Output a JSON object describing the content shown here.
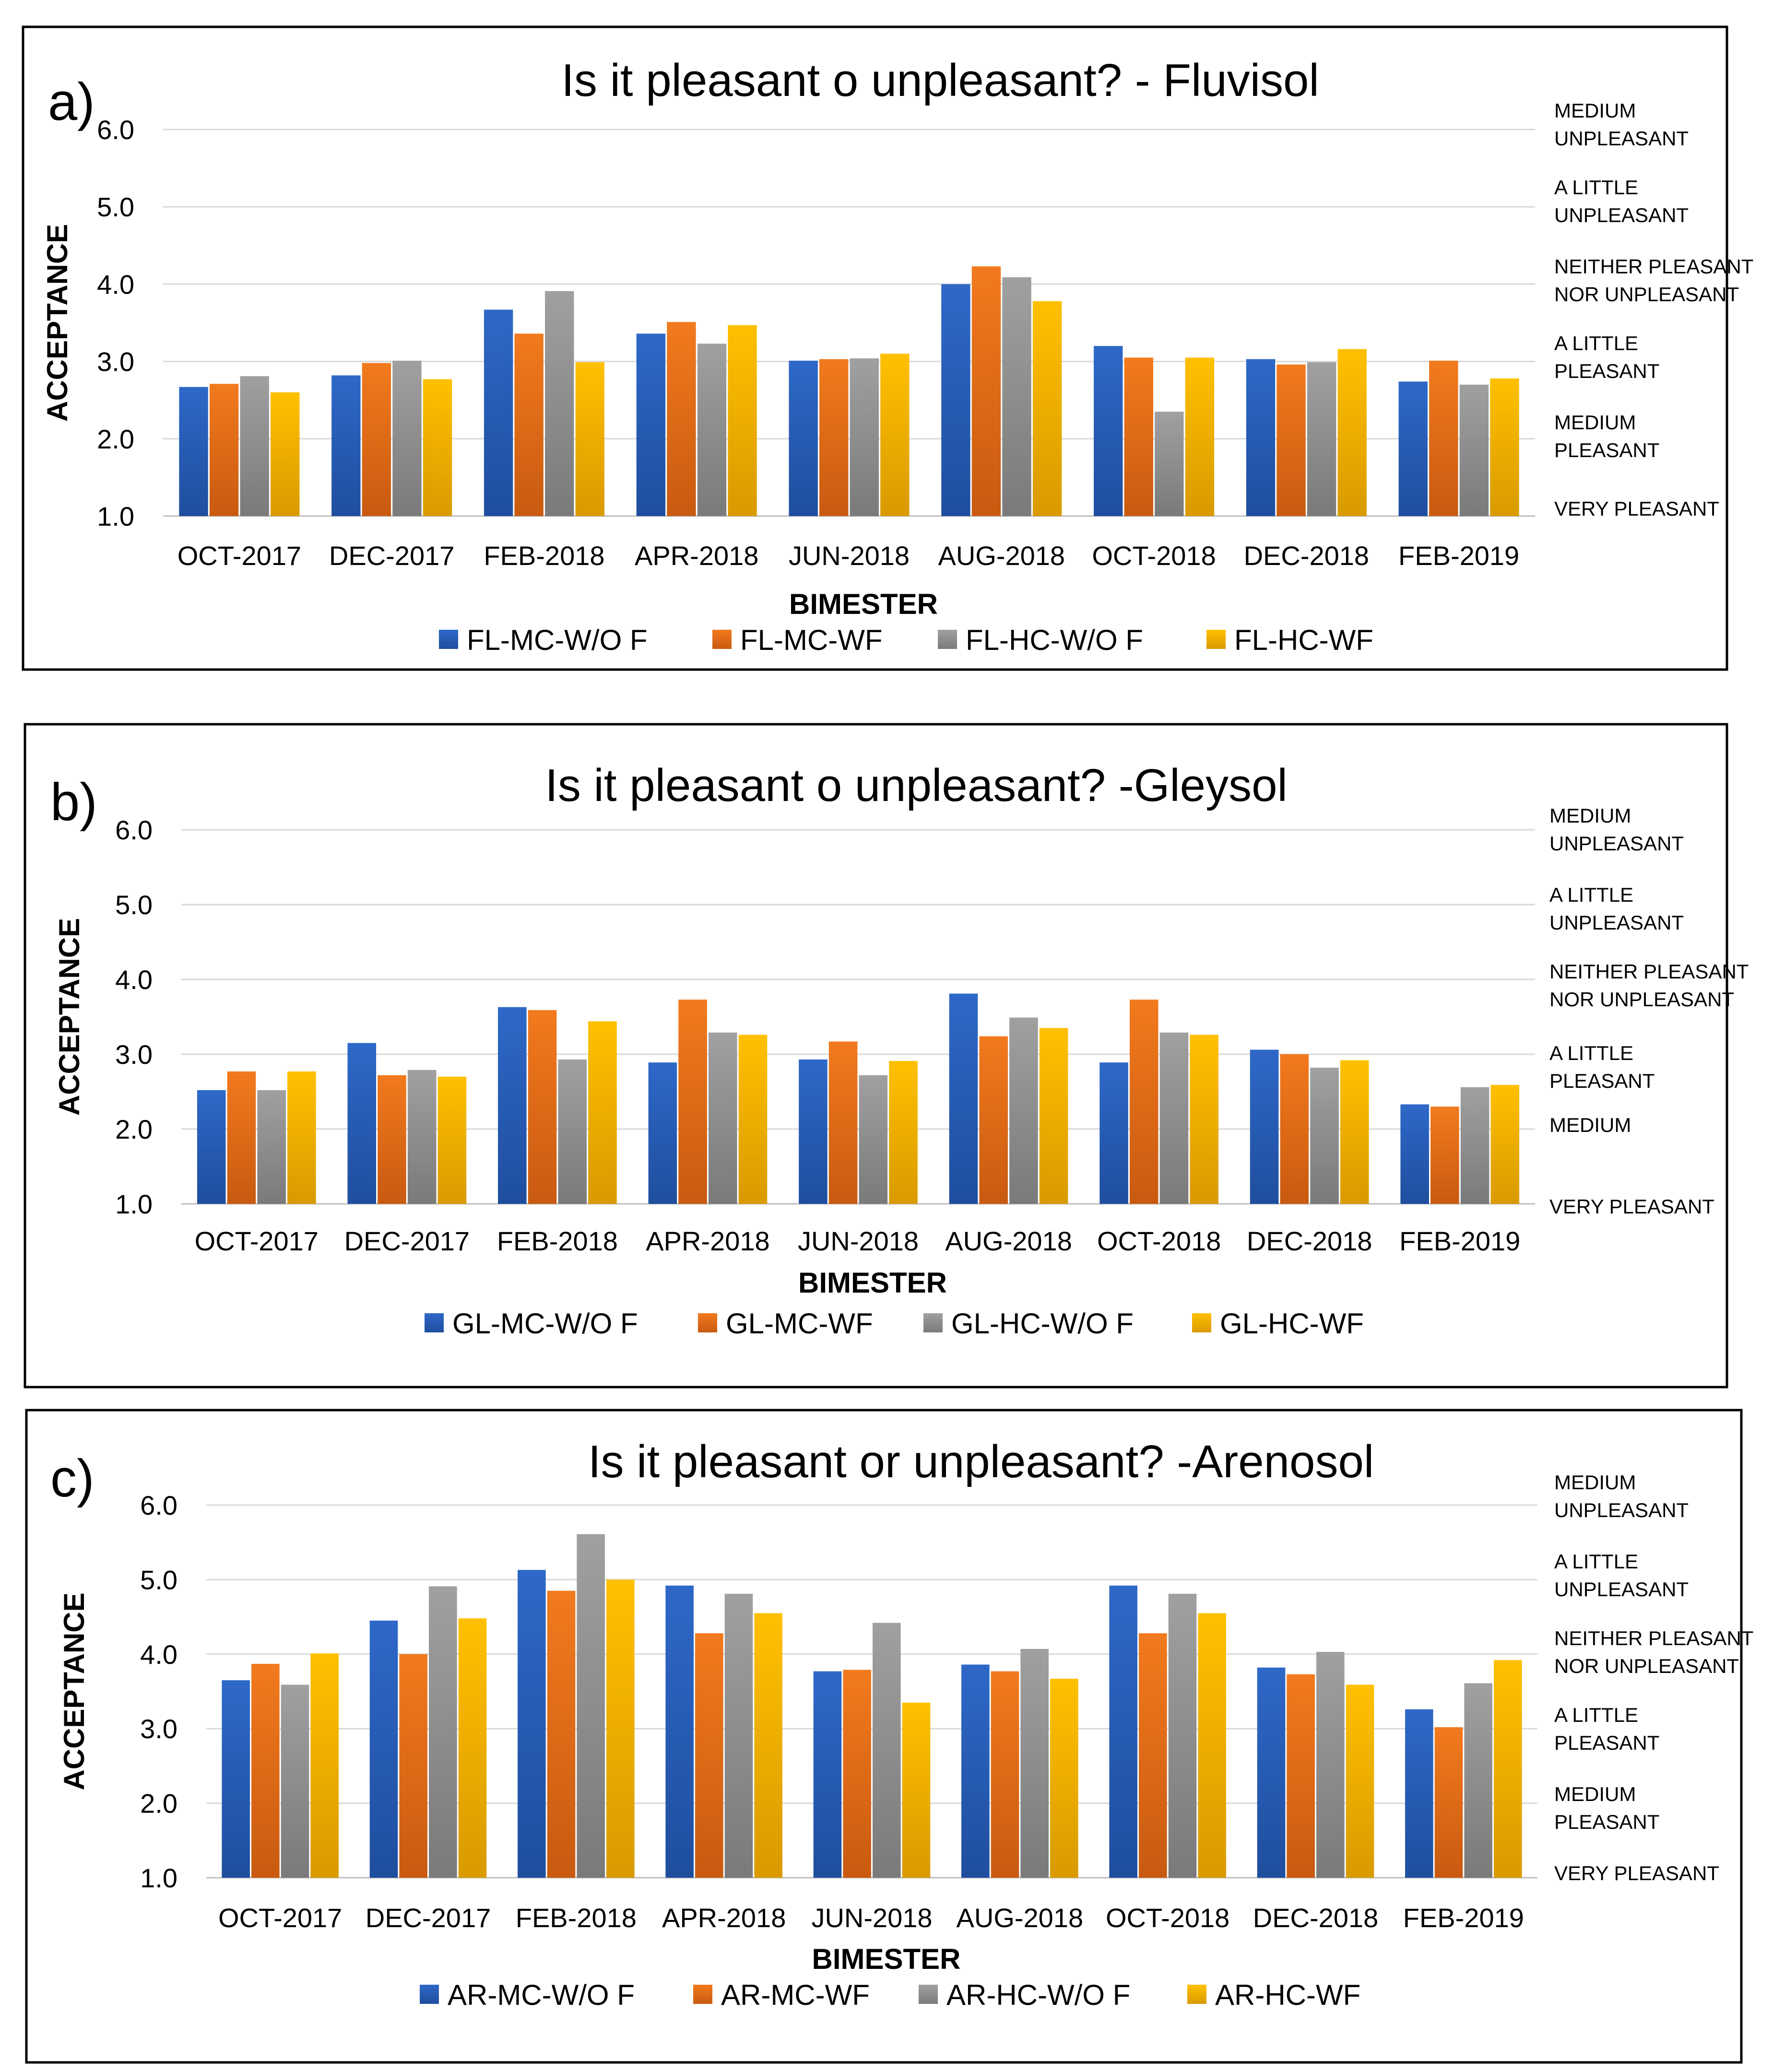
{
  "colors": {
    "series": [
      "#2E68C8",
      "#F27A1E",
      "#A0A0A0",
      "#FFC000"
    ],
    "series_dark": [
      "#1F4E9E",
      "#C85A10",
      "#7A7A7A",
      "#D99A00"
    ],
    "grid": "#D9D9D9",
    "frame": "#000000"
  },
  "chart_data": [
    {
      "type": "bar",
      "panel_label": "a",
      "title": "Is it pleasant o unpleasant? - Fluvisol",
      "xlabel": "BIMESTER",
      "ylabel": "ACCEPTANCE",
      "ylim": [
        1.0,
        6.0
      ],
      "yticks": [
        "6.0",
        "5.0",
        "4.0",
        "3.0",
        "2.0",
        "1.0"
      ],
      "categories": [
        "OCT-2017",
        "DEC-2017",
        "FEB-2018",
        "APR-2018",
        "JUN-2018",
        "AUG-2018",
        "OCT-2018",
        "DEC-2018",
        "FEB-2019"
      ],
      "series": [
        {
          "name": "FL-MC-W/O F",
          "values": [
            2.67,
            2.82,
            3.67,
            3.36,
            3.01,
            4.0,
            3.2,
            3.03,
            2.74
          ]
        },
        {
          "name": "FL-MC-WF",
          "values": [
            2.71,
            2.98,
            3.36,
            3.51,
            3.03,
            4.23,
            3.05,
            2.96,
            3.01
          ]
        },
        {
          "name": "FL-HC-W/O F",
          "values": [
            2.81,
            3.01,
            3.91,
            3.23,
            3.04,
            4.09,
            2.35,
            2.99,
            2.7
          ]
        },
        {
          "name": "FL-HC-WF",
          "values": [
            2.6,
            2.77,
            2.99,
            3.47,
            3.1,
            3.78,
            3.05,
            3.16,
            2.78
          ]
        }
      ],
      "right_scale": [
        {
          "text": [
            "MEDIUM",
            "UNPLEASANT"
          ]
        },
        {
          "text": [
            "A LITTLE",
            "UNPLEASANT"
          ]
        },
        {
          "text": [
            "NEITHER PLEASANT",
            "NOR UNPLEASANT"
          ]
        },
        {
          "text": [
            "A LITTLE",
            "PLEASANT"
          ]
        },
        {
          "text": [
            "MEDIUM",
            "PLEASANT"
          ]
        },
        {
          "text": [
            "VERY PLEASANT"
          ]
        }
      ]
    },
    {
      "type": "bar",
      "panel_label": "b",
      "title": "Is it pleasant o unpleasant? -Gleysol",
      "xlabel": "BIMESTER",
      "ylabel": "ACCEPTANCE",
      "ylim": [
        1.0,
        6.0
      ],
      "yticks": [
        "6.0",
        "5.0",
        "4.0",
        "3.0",
        "2.0",
        "1.0"
      ],
      "categories": [
        "OCT-2017",
        "DEC-2017",
        "FEB-2018",
        "APR-2018",
        "JUN-2018",
        "AUG-2018",
        "OCT-2018",
        "DEC-2018",
        "FEB-2019"
      ],
      "series": [
        {
          "name": "GL-MC-W/O F",
          "values": [
            2.52,
            3.15,
            3.63,
            2.89,
            2.93,
            3.81,
            2.89,
            3.06,
            2.33
          ]
        },
        {
          "name": "GL-MC-WF",
          "values": [
            2.77,
            2.72,
            3.59,
            3.73,
            3.17,
            3.24,
            3.73,
            3.0,
            2.3
          ]
        },
        {
          "name": "GL-HC-W/O F",
          "values": [
            2.52,
            2.79,
            2.93,
            3.29,
            2.72,
            3.49,
            3.29,
            2.82,
            2.56
          ]
        },
        {
          "name": "GL-HC-WF",
          "values": [
            2.77,
            2.7,
            3.44,
            3.26,
            2.91,
            3.35,
            3.26,
            2.92,
            2.59
          ]
        }
      ],
      "right_scale": [
        {
          "text": [
            "MEDIUM",
            "UNPLEASANT"
          ]
        },
        {
          "text": [
            "A LITTLE",
            "UNPLEASANT"
          ]
        },
        {
          "text": [
            "NEITHER PLEASANT",
            "NOR UNPLEASANT"
          ]
        },
        {
          "text": [
            "A LITTLE",
            "PLEASANT"
          ]
        },
        {
          "text": [
            "MEDIUM"
          ]
        },
        {
          "text": [
            "VERY PLEASANT"
          ]
        }
      ]
    },
    {
      "type": "bar",
      "panel_label": "c",
      "title": "Is it pleasant or unpleasant? -Arenosol",
      "xlabel": "BIMESTER",
      "ylabel": "ACCEPTANCE",
      "ylim": [
        1.0,
        6.0
      ],
      "yticks": [
        "6.0",
        "5.0",
        "4.0",
        "3.0",
        "2.0",
        "1.0"
      ],
      "categories": [
        "OCT-2017",
        "DEC-2017",
        "FEB-2018",
        "APR-2018",
        "JUN-2018",
        "AUG-2018",
        "OCT-2018",
        "DEC-2018",
        "FEB-2019"
      ],
      "series": [
        {
          "name": "AR-MC-W/O F",
          "values": [
            3.65,
            4.45,
            5.13,
            4.92,
            3.77,
            3.86,
            4.92,
            3.82,
            3.26
          ]
        },
        {
          "name": "AR-MC-WF",
          "values": [
            3.87,
            4.0,
            4.85,
            4.28,
            3.79,
            3.77,
            4.28,
            3.73,
            3.02
          ]
        },
        {
          "name": "AR-HC-W/O F",
          "values": [
            3.59,
            4.91,
            5.61,
            4.81,
            4.42,
            4.07,
            4.81,
            4.03,
            3.61
          ]
        },
        {
          "name": "AR-HC-WF",
          "values": [
            4.01,
            4.48,
            5.0,
            4.55,
            3.35,
            3.67,
            4.55,
            3.59,
            3.92
          ]
        }
      ],
      "right_scale": [
        {
          "text": [
            "MEDIUM",
            "UNPLEASANT"
          ]
        },
        {
          "text": [
            "A LITTLE",
            "UNPLEASANT"
          ]
        },
        {
          "text": [
            "NEITHER PLEASANT",
            "NOR UNPLEASANT"
          ]
        },
        {
          "text": [
            "A LITTLE",
            "PLEASANT"
          ]
        },
        {
          "text": [
            "MEDIUM",
            "PLEASANT"
          ]
        },
        {
          "text": [
            "VERY PLEASANT"
          ]
        }
      ]
    }
  ]
}
